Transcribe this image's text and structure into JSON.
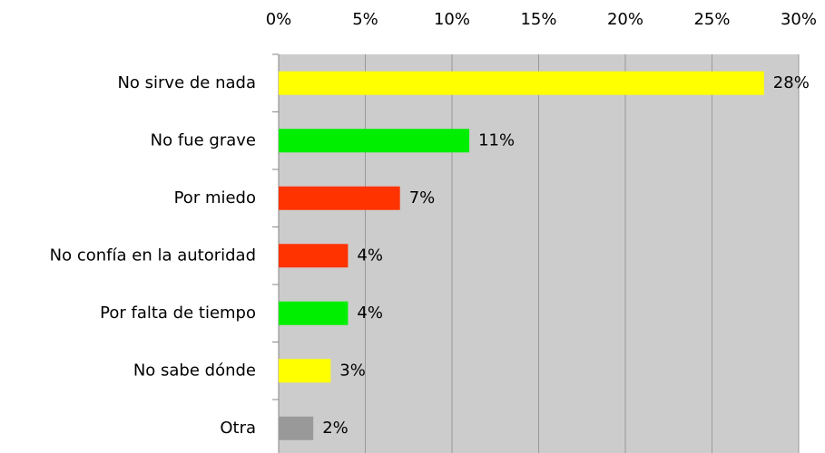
{
  "chart_data": {
    "type": "barh",
    "categories": [
      "No sirve de nada",
      "No fue grave",
      "Por miedo",
      "No confía en la autoridad",
      "Por falta de tiempo",
      "No sabe dónde",
      "Otra"
    ],
    "values": [
      28,
      11,
      7,
      4,
      4,
      3,
      2
    ],
    "value_labels": [
      "28%",
      "11%",
      "7%",
      "4%",
      "4%",
      "3%",
      "2%"
    ],
    "colors": [
      "#ffff00",
      "#00ee00",
      "#ff3300",
      "#ff3300",
      "#00ee00",
      "#ffff00",
      "#999999"
    ],
    "xlim": [
      0,
      30
    ],
    "xticks": [
      {
        "value": 0,
        "label": "0%"
      },
      {
        "value": 5,
        "label": "5%"
      },
      {
        "value": 10,
        "label": "10%"
      },
      {
        "value": 15,
        "label": "15%"
      },
      {
        "value": 20,
        "label": "20%"
      },
      {
        "value": 25,
        "label": "25%"
      },
      {
        "value": 30,
        "label": "30%"
      }
    ],
    "grid": true
  }
}
